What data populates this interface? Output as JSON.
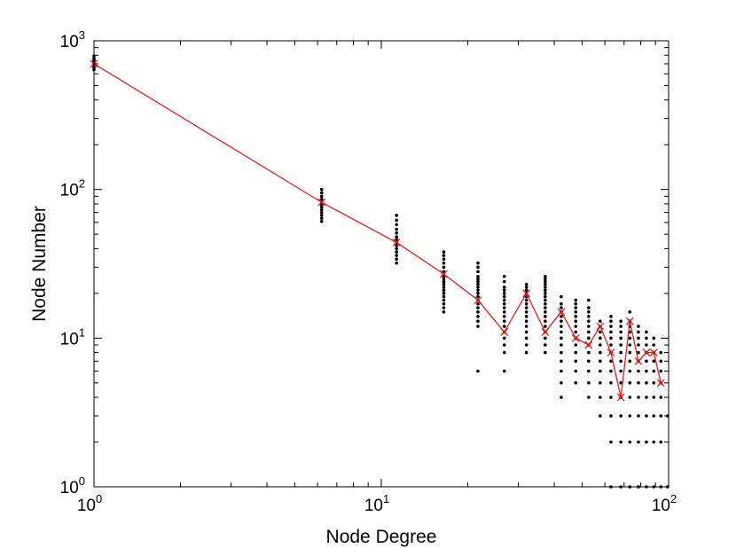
{
  "chart_data": {
    "type": "scatter",
    "xlabel": "Node Degree",
    "ylabel": "Node Number",
    "xscale": "log",
    "yscale": "log",
    "xlim": [
      1,
      100
    ],
    "ylim": [
      1,
      1000
    ],
    "grid": false,
    "x_ticks": [
      {
        "base": "10",
        "exp": "0",
        "value": 1
      },
      {
        "base": "10",
        "exp": "1",
        "value": 10
      },
      {
        "base": "10",
        "exp": "2",
        "value": 100
      }
    ],
    "y_ticks": [
      {
        "base": "10",
        "exp": "0",
        "value": 1
      },
      {
        "base": "10",
        "exp": "1",
        "value": 10
      },
      {
        "base": "10",
        "exp": "2",
        "value": 100
      },
      {
        "base": "10",
        "exp": "3",
        "value": 1000
      }
    ],
    "colors": {
      "line": "#e8191b",
      "points": "#000000",
      "axis": "#000000"
    },
    "series": [
      {
        "kind": "scatter",
        "point_groups": [
          {
            "x": 1.0,
            "y": [
              640,
              660,
              680,
              700,
              720,
              740,
              760,
              790
            ]
          },
          {
            "x": 6.2,
            "y": [
              61,
              64,
              67,
              70,
              73,
              76,
              79,
              82,
              86,
              90,
              95,
              100
            ]
          },
          {
            "x": 11.3,
            "y": [
              32,
              34,
              36,
              38,
              40,
              42,
              44,
              46,
              48,
              51,
              54,
              58,
              62,
              67
            ]
          },
          {
            "x": 16.5,
            "y": [
              15,
              16,
              17,
              18,
              19,
              20,
              21,
              22,
              23,
              24,
              25,
              26,
              27,
              28,
              30,
              32,
              34,
              36,
              38
            ]
          },
          {
            "x": 21.7,
            "y": [
              6,
              12,
              13,
              14,
              15,
              16,
              17,
              18,
              19,
              20,
              21,
              22,
              23,
              24,
              25,
              26,
              28,
              30,
              32
            ]
          },
          {
            "x": 26.8,
            "y": [
              6,
              8,
              9,
              10,
              11,
              12,
              13,
              14,
              15,
              16,
              17,
              18,
              19,
              20,
              21,
              22,
              24,
              26
            ]
          },
          {
            "x": 32.0,
            "y": [
              8,
              9,
              10,
              11,
              12,
              13,
              14,
              15,
              16,
              17,
              18,
              19,
              20,
              21,
              22,
              23
            ]
          },
          {
            "x": 37.2,
            "y": [
              8,
              9,
              10,
              11,
              12,
              13,
              14,
              15,
              16,
              17,
              18,
              19,
              20,
              21,
              22,
              23,
              24,
              25,
              26
            ]
          },
          {
            "x": 42.3,
            "y": [
              4,
              5,
              6,
              7,
              8,
              9,
              10,
              11,
              12,
              13,
              14,
              15,
              16,
              17,
              19
            ]
          },
          {
            "x": 47.5,
            "y": [
              5,
              6,
              7,
              8,
              9,
              10,
              11,
              12,
              13,
              14,
              15,
              16,
              17,
              18
            ]
          },
          {
            "x": 52.7,
            "y": [
              4,
              5,
              6,
              7,
              8,
              9,
              10,
              11,
              12,
              13,
              14,
              15,
              16,
              18
            ]
          },
          {
            "x": 57.8,
            "y": [
              3,
              4,
              5,
              6,
              7,
              8,
              9,
              10,
              11,
              12,
              13
            ]
          },
          {
            "x": 63.0,
            "y": [
              1,
              2,
              3,
              4,
              5,
              6,
              7,
              8,
              9,
              10,
              11,
              12,
              13,
              14
            ]
          },
          {
            "x": 68.2,
            "y": [
              1,
              2,
              3,
              4,
              5,
              6,
              7,
              8,
              9,
              10,
              11,
              12,
              13
            ]
          },
          {
            "x": 73.3,
            "y": [
              1,
              2,
              3,
              4,
              5,
              6,
              7,
              8,
              9,
              10,
              11,
              12,
              13,
              15
            ]
          },
          {
            "x": 78.5,
            "y": [
              1,
              2,
              3,
              4,
              5,
              6,
              7,
              8,
              9,
              10,
              11,
              12
            ]
          },
          {
            "x": 83.7,
            "y": [
              1,
              2,
              3,
              4,
              5,
              6,
              7,
              8,
              9,
              10,
              11
            ]
          },
          {
            "x": 88.8,
            "y": [
              1,
              2,
              3,
              4,
              5,
              6,
              7,
              8,
              9,
              10
            ]
          },
          {
            "x": 94.0,
            "y": [
              1,
              2,
              3,
              4,
              5,
              6,
              7,
              8
            ]
          },
          {
            "x": 99.2,
            "y": [
              1,
              3
            ]
          }
        ]
      },
      {
        "kind": "line",
        "marker": "x",
        "x": [
          1.0,
          6.2,
          11.3,
          16.5,
          21.7,
          26.8,
          32.0,
          37.2,
          42.3,
          47.5,
          52.7,
          57.8,
          63.0,
          68.2,
          73.3,
          78.5,
          83.7,
          88.8,
          94.0
        ],
        "y": [
          700,
          82,
          44,
          27,
          18,
          11,
          20,
          11,
          15,
          10,
          9,
          12,
          8,
          4,
          13,
          7,
          8,
          8,
          5
        ]
      }
    ]
  }
}
